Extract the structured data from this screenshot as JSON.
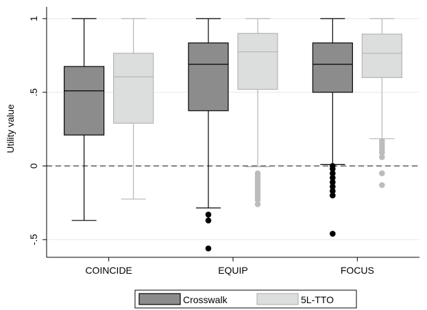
{
  "chart_data": {
    "type": "box",
    "title": "",
    "xlabel": "",
    "ylabel": "Utility value",
    "ylim": [
      -0.62,
      1.08
    ],
    "yticks": [
      {
        "value": -0.5,
        "label": "-.5"
      },
      {
        "value": 0,
        "label": "0"
      },
      {
        "value": 0.5,
        "label": ".5"
      },
      {
        "value": 1,
        "label": "1"
      }
    ],
    "reference_line": {
      "value": 0,
      "style": "dashed",
      "color": "#555555"
    },
    "categories": [
      "COINCIDE",
      "EQUIP",
      "FOCUS"
    ],
    "series": [
      {
        "name": "Crosswalk",
        "fill": "#8c8c8c",
        "line": "#000000",
        "outlier_color": "#000000",
        "boxes": [
          {
            "min": -0.37,
            "q1": 0.21,
            "median": 0.51,
            "q3": 0.675,
            "max": 1.0,
            "outliers": []
          },
          {
            "min": -0.285,
            "q1": 0.375,
            "median": 0.69,
            "q3": 0.835,
            "max": 1.0,
            "outliers": [
              -0.33,
              -0.37,
              -0.56
            ]
          },
          {
            "min": 0.01,
            "q1": 0.5,
            "median": 0.69,
            "q3": 0.835,
            "max": 1.0,
            "outliers": [
              0.0,
              -0.02,
              -0.05,
              -0.08,
              -0.11,
              -0.14,
              -0.17,
              -0.2,
              -0.46
            ]
          }
        ]
      },
      {
        "name": "5L-TTO",
        "fill": "#dcdddd",
        "line": "#b4b4b4",
        "outlier_color": "#bcbcbc",
        "boxes": [
          {
            "min": -0.225,
            "q1": 0.29,
            "median": 0.605,
            "q3": 0.765,
            "max": 1.0,
            "outliers": []
          },
          {
            "min": -0.005,
            "q1": 0.52,
            "median": 0.775,
            "q3": 0.9,
            "max": 1.0,
            "outliers": [
              -0.05,
              -0.07,
              -0.09,
              -0.11,
              -0.13,
              -0.15,
              -0.17,
              -0.19,
              -0.21,
              -0.23,
              -0.26
            ]
          },
          {
            "min": 0.185,
            "q1": 0.6,
            "median": 0.765,
            "q3": 0.895,
            "max": 1.0,
            "outliers": [
              0.17,
              0.15,
              0.13,
              0.11,
              0.09,
              0.06,
              -0.05,
              -0.13
            ]
          }
        ]
      }
    ],
    "legend": {
      "position": "bottom-center",
      "entries": [
        "Crosswalk",
        "5L-TTO"
      ]
    }
  }
}
